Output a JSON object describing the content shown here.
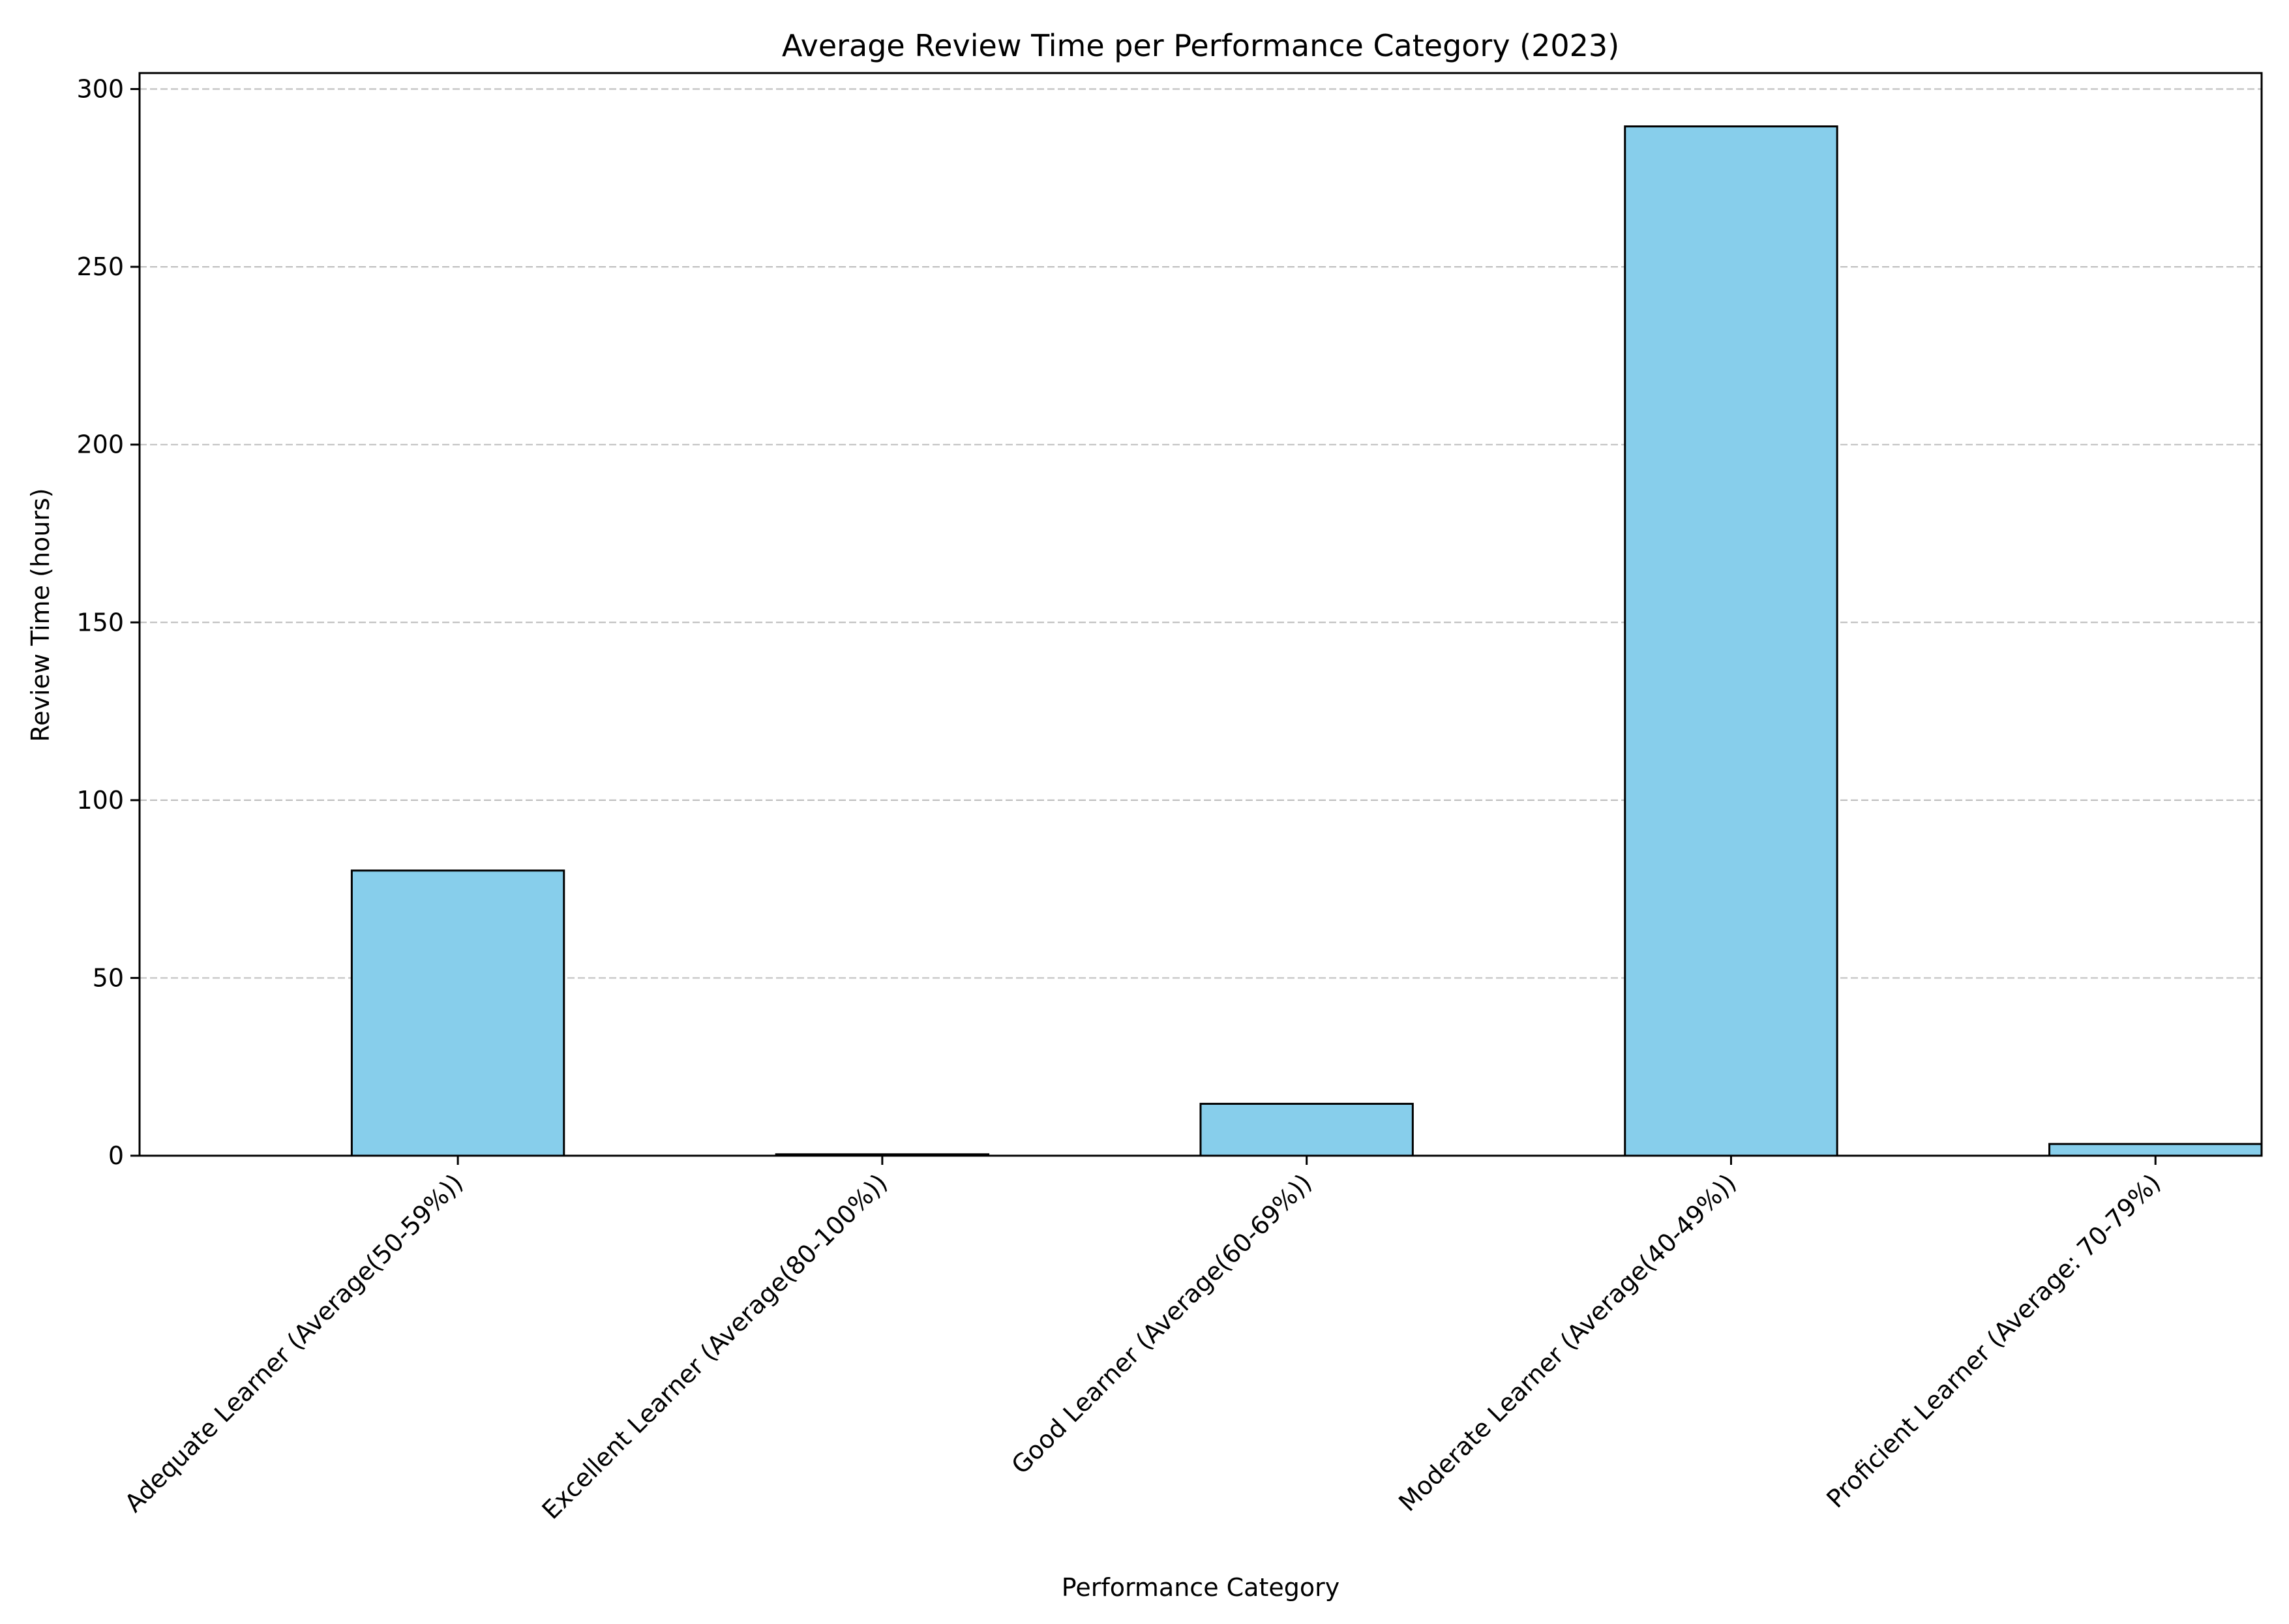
{
  "chart_data": {
    "type": "bar",
    "title": "Average Review Time per Performance Category (2023)",
    "xlabel": "Performance Category",
    "ylabel": "Review Time (hours)",
    "categories": [
      "Adequate Learner (Average(50-59%))",
      "Excellent Learner (Average(80-100%))",
      "Good Learner (Average(60-69%))",
      "Moderate Learner (Average(40-49%))",
      "Proficient Learner (Average: 70-79%)"
    ],
    "values": [
      80.2,
      0.4,
      14.6,
      289.5,
      3.3
    ],
    "ylim": [
      0,
      304.5
    ],
    "yticks": [
      0,
      50,
      100,
      150,
      200,
      250,
      300
    ],
    "grid": "y-dashed",
    "legend": "none",
    "colors": {
      "bar_fill": "#87CEEB",
      "bar_edge": "#000000",
      "grid": "#c0c0c0"
    }
  }
}
